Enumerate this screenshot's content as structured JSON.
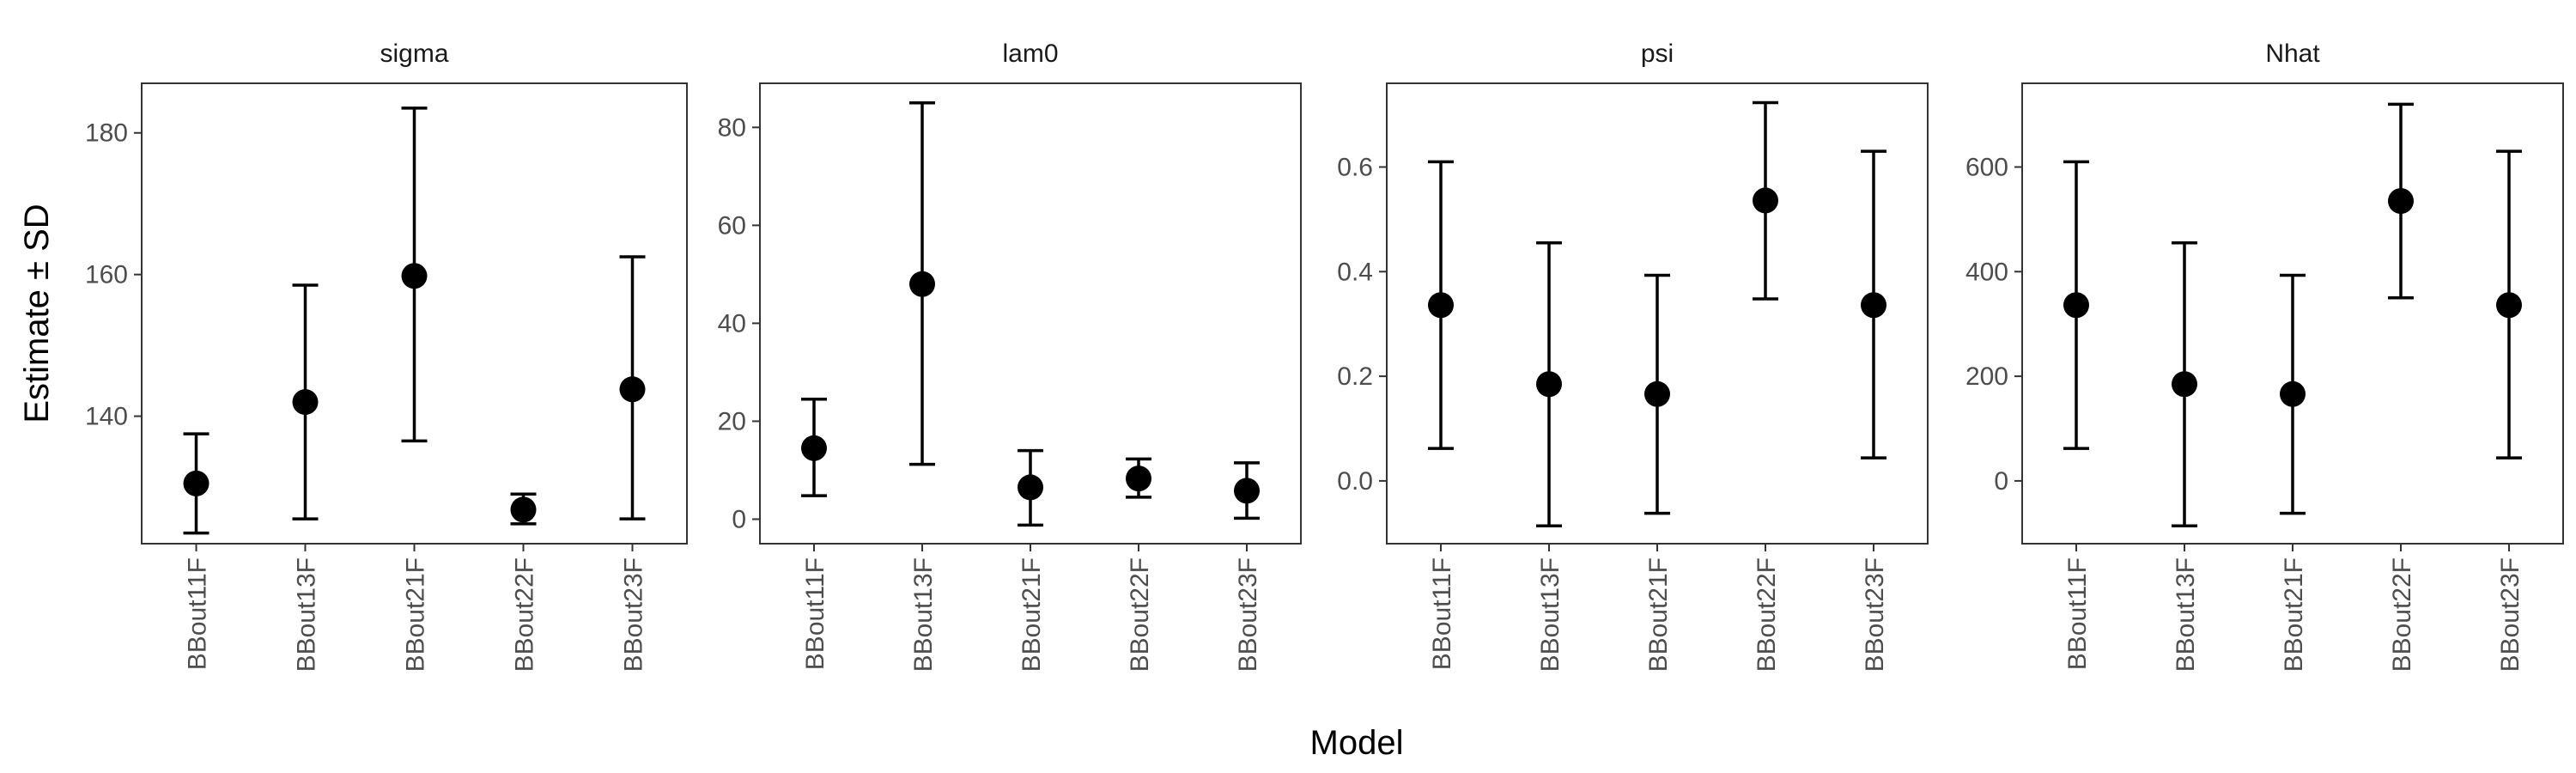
{
  "chart_data": {
    "type": "scatter",
    "subtype": "point-with-errorbars, faceted",
    "xlabel": "Model",
    "ylabel": "Estimate ± SD",
    "categories": [
      "BBout11F",
      "BBout13F",
      "BBout21F",
      "BBout22F",
      "BBout23F"
    ],
    "grid": false,
    "legend": "none",
    "point_color": "#000000",
    "facets": [
      {
        "name": "sigma",
        "ylim": [
          122,
          187
        ],
        "yticks": [
          140,
          160,
          180
        ],
        "ytick_labels": [
          "140",
          "160",
          "180"
        ],
        "estimates": [
          130.5,
          142.0,
          159.8,
          126.8,
          143.8
        ],
        "lower": [
          123.5,
          125.5,
          136.5,
          124.8,
          125.5
        ],
        "upper": [
          137.5,
          158.5,
          183.5,
          129.0,
          162.5
        ]
      },
      {
        "name": "lam0",
        "ylim": [
          -5,
          89
        ],
        "yticks": [
          0,
          20,
          40,
          60,
          80
        ],
        "ytick_labels": [
          "0",
          "20",
          "40",
          "60",
          "80"
        ],
        "estimates": [
          14.5,
          48.0,
          6.5,
          8.3,
          5.8
        ],
        "lower": [
          4.8,
          11.2,
          -1.2,
          4.5,
          0.2
        ],
        "upper": [
          24.5,
          85.0,
          14.0,
          12.3,
          11.5
        ]
      },
      {
        "name": "psi",
        "ylim": [
          -0.12,
          0.76
        ],
        "yticks": [
          0.0,
          0.2,
          0.4,
          0.6
        ],
        "ytick_labels": [
          "0.0",
          "0.2",
          "0.4",
          "0.6"
        ],
        "estimates": [
          0.336,
          0.185,
          0.166,
          0.536,
          0.336
        ],
        "lower": [
          0.062,
          -0.086,
          -0.062,
          0.348,
          0.044
        ],
        "upper": [
          0.61,
          0.455,
          0.393,
          0.723,
          0.63
        ]
      },
      {
        "name": "Nhat",
        "ylim": [
          -120,
          760
        ],
        "yticks": [
          0,
          200,
          400,
          600
        ],
        "ytick_labels": [
          "0",
          "200",
          "400",
          "600"
        ],
        "estimates": [
          336,
          185,
          166,
          535,
          336
        ],
        "lower": [
          62,
          -86,
          -62,
          350,
          44
        ],
        "upper": [
          610,
          455,
          393,
          720,
          630
        ]
      }
    ]
  }
}
